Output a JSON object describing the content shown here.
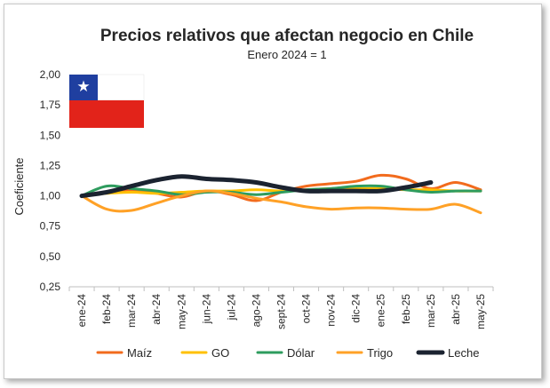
{
  "chart_data": {
    "type": "line",
    "title": "Precios relativos que afectan negocio en Chile",
    "subtitle": "Enero 2024 = 1",
    "xlabel": "",
    "ylabel": "Coeficiente",
    "ylim": [
      0.25,
      2.0
    ],
    "yticks": [
      "0,25",
      "0,50",
      "0,75",
      "1,00",
      "1,25",
      "1,50",
      "1,75",
      "2,00"
    ],
    "ytick_values": [
      0.25,
      0.5,
      0.75,
      1.0,
      1.25,
      1.5,
      1.75,
      2.0
    ],
    "categories": [
      "ene-24",
      "feb-24",
      "mar-24",
      "abr-24",
      "may-24",
      "jun-24",
      "jul-24",
      "ago-24",
      "sept-24",
      "oct-24",
      "nov-24",
      "dic-24",
      "ene-25",
      "feb-25",
      "mar-25",
      "abr-25",
      "may-25"
    ],
    "grid": false,
    "legend_position": "bottom",
    "flag": "chile-flag",
    "series": [
      {
        "name": "Maíz",
        "color": "#f26b1d",
        "width": 3,
        "values": [
          1.0,
          1.03,
          1.05,
          1.02,
          0.99,
          1.04,
          1.01,
          0.96,
          1.03,
          1.08,
          1.1,
          1.12,
          1.17,
          1.14,
          1.06,
          1.11,
          1.05
        ]
      },
      {
        "name": "GO",
        "color": "#ffc000",
        "width": 3,
        "values": [
          1.0,
          1.02,
          1.03,
          1.02,
          1.03,
          1.04,
          1.04,
          1.05,
          1.04,
          1.05,
          1.06,
          1.06,
          1.06,
          1.05,
          1.05,
          1.04,
          1.04
        ]
      },
      {
        "name": "Dólar",
        "color": "#2e9c5e",
        "width": 3,
        "values": [
          1.0,
          1.08,
          1.06,
          1.04,
          1.01,
          1.03,
          1.03,
          1.01,
          1.03,
          1.05,
          1.06,
          1.08,
          1.08,
          1.05,
          1.03,
          1.04,
          1.04
        ]
      },
      {
        "name": "Trigo",
        "color": "#ffa126",
        "width": 3,
        "values": [
          1.0,
          0.89,
          0.88,
          0.94,
          1.0,
          1.04,
          1.02,
          0.98,
          0.95,
          0.91,
          0.89,
          0.9,
          0.9,
          0.89,
          0.89,
          0.93,
          0.86
        ]
      },
      {
        "name": "Leche",
        "color": "#1b2330",
        "width": 5,
        "values": [
          1.0,
          1.03,
          1.08,
          1.13,
          1.16,
          1.14,
          1.13,
          1.11,
          1.07,
          1.04,
          1.04,
          1.04,
          1.04,
          1.07,
          1.11,
          null,
          null
        ]
      }
    ]
  }
}
